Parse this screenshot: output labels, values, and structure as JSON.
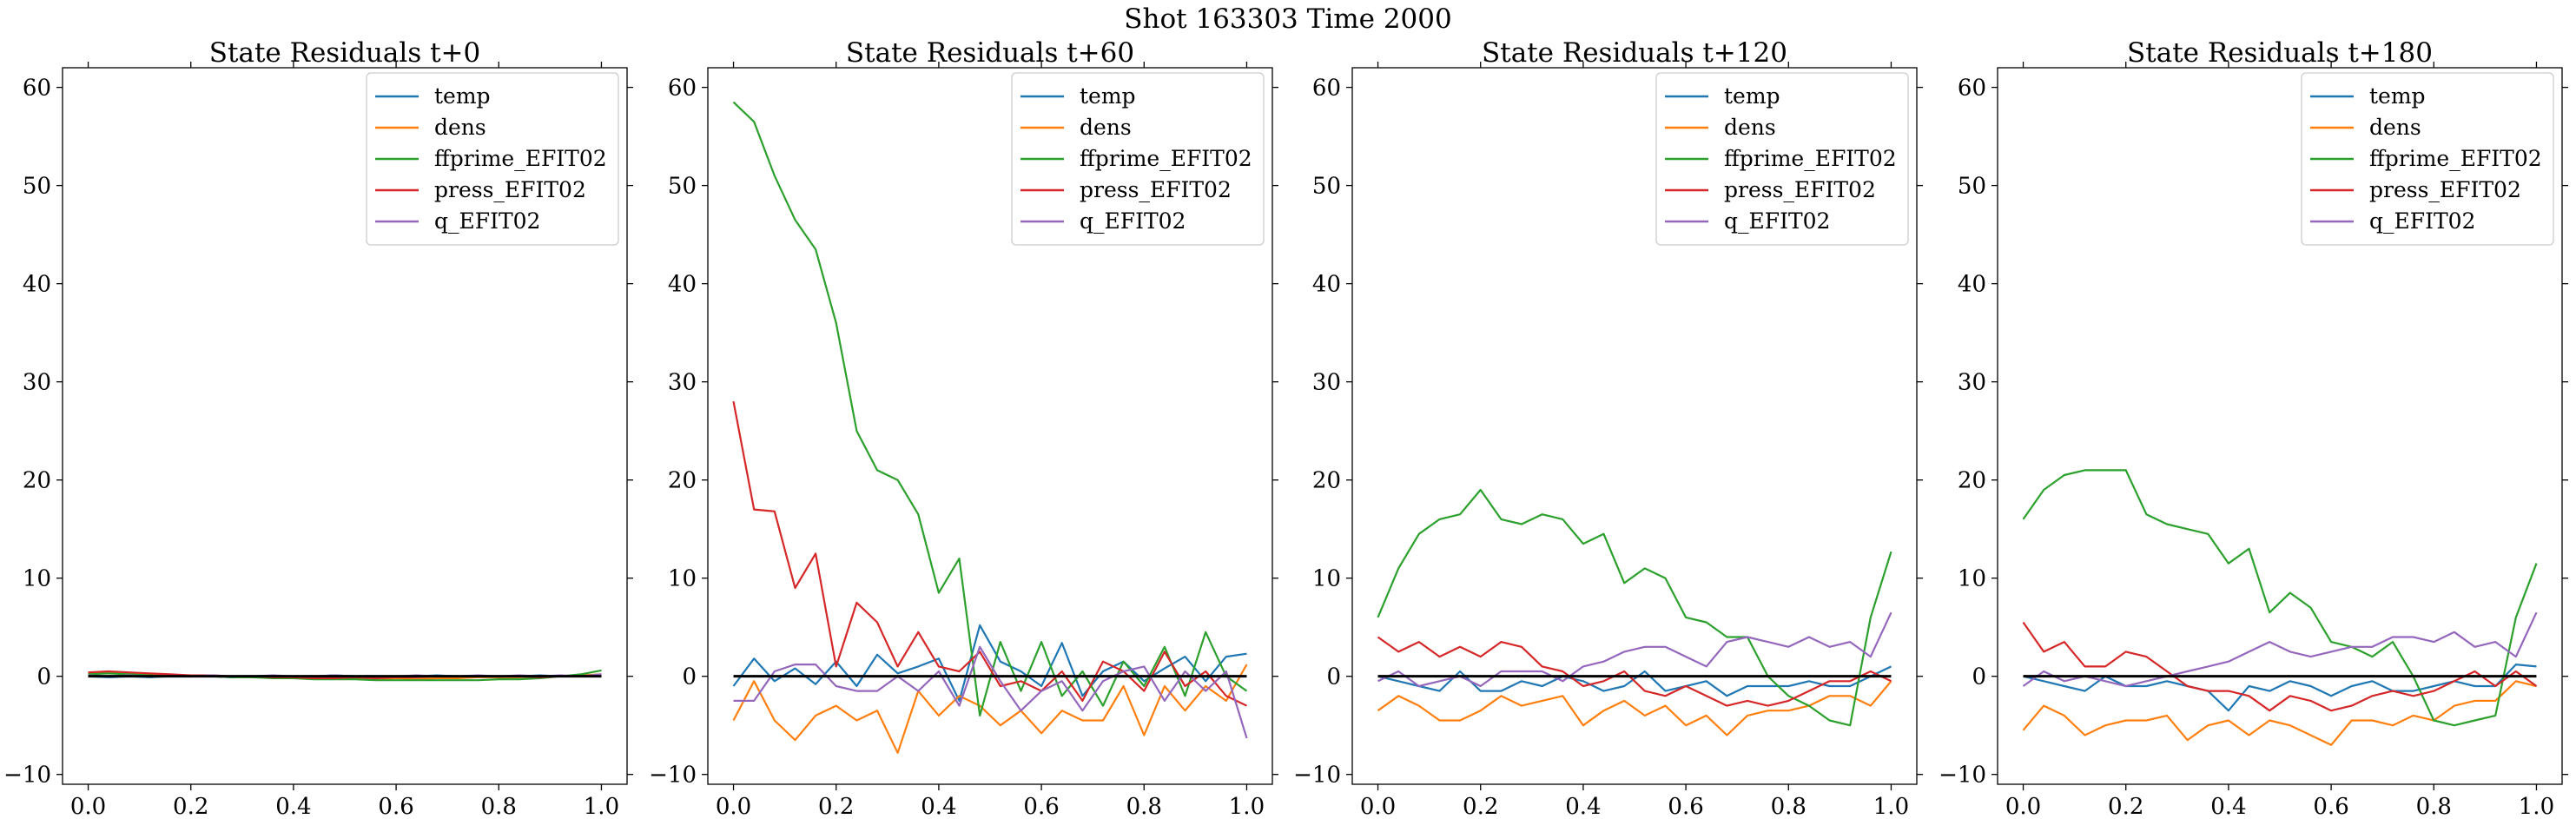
{
  "figure": {
    "suptitle": "Shot 163303   Time 2000"
  },
  "colors": {
    "temp": "#1f77b4",
    "dens": "#ff7f0e",
    "ffprime_EFIT02": "#2ca02c",
    "press_EFIT02": "#d62728",
    "q_EFIT02": "#9467bd",
    "zero_line": "#000000"
  },
  "chart_data": [
    {
      "type": "line",
      "title": "State Residuals t+0",
      "xlabel": "",
      "ylabel": "",
      "xlim": [
        -0.05,
        1.05
      ],
      "ylim": [
        -11,
        62
      ],
      "xticks": [
        0.0,
        0.2,
        0.4,
        0.6,
        0.8,
        1.0
      ],
      "xtick_labels": [
        "0.0",
        "0.2",
        "0.4",
        "0.6",
        "0.8",
        "1.0"
      ],
      "yticks": [
        -10,
        0,
        10,
        20,
        30,
        40,
        50,
        60
      ],
      "ytick_labels": [
        "−10",
        "0",
        "10",
        "20",
        "30",
        "40",
        "50",
        "60"
      ],
      "legend": "upper right",
      "zero_line": true,
      "x": [
        0.0,
        0.04,
        0.08,
        0.12,
        0.16,
        0.2,
        0.24,
        0.28,
        0.32,
        0.36,
        0.4,
        0.44,
        0.48,
        0.52,
        0.56,
        0.6,
        0.64,
        0.68,
        0.72,
        0.76,
        0.8,
        0.84,
        0.88,
        0.92,
        0.96,
        1.0
      ],
      "series": [
        {
          "name": "temp",
          "color_key": "temp",
          "values": [
            0.0,
            -0.1,
            0.0,
            -0.1,
            0.0,
            0.1,
            0.0,
            -0.1,
            0.0,
            0.0,
            -0.1,
            0.0,
            0.1,
            0.0,
            -0.1,
            0.0,
            0.0,
            0.1,
            0.0,
            0.0,
            -0.1,
            0.0,
            0.1,
            0.0,
            0.0,
            0.1
          ]
        },
        {
          "name": "dens",
          "color_key": "dens",
          "values": [
            0.3,
            0.4,
            0.3,
            0.2,
            0.1,
            0.1,
            0.0,
            0.0,
            -0.1,
            -0.1,
            -0.1,
            -0.2,
            -0.2,
            -0.2,
            -0.3,
            -0.2,
            -0.3,
            -0.2,
            -0.2,
            -0.1,
            -0.1,
            -0.1,
            0.0,
            0.0,
            0.1,
            0.2
          ]
        },
        {
          "name": "ffprime_EFIT02",
          "color_key": "ffprime_EFIT02",
          "values": [
            0.2,
            0.3,
            0.2,
            0.1,
            0.0,
            0.0,
            0.0,
            -0.1,
            -0.1,
            -0.2,
            -0.2,
            -0.3,
            -0.3,
            -0.3,
            -0.4,
            -0.4,
            -0.4,
            -0.4,
            -0.4,
            -0.4,
            -0.3,
            -0.3,
            -0.2,
            0.0,
            0.2,
            0.6
          ]
        },
        {
          "name": "press_EFIT02",
          "color_key": "press_EFIT02",
          "values": [
            0.4,
            0.5,
            0.4,
            0.3,
            0.2,
            0.1,
            0.1,
            0.0,
            0.0,
            -0.1,
            -0.1,
            -0.2,
            -0.2,
            -0.1,
            -0.2,
            -0.1,
            -0.1,
            0.0,
            0.0,
            0.0,
            0.0,
            0.0,
            -0.1,
            0.0,
            0.0,
            0.1
          ]
        },
        {
          "name": "q_EFIT02",
          "color_key": "q_EFIT02",
          "values": [
            0.1,
            0.0,
            0.1,
            0.0,
            0.0,
            0.0,
            0.1,
            0.0,
            0.0,
            0.1,
            0.0,
            0.0,
            0.1,
            0.0,
            0.0,
            0.0,
            0.1,
            0.0,
            0.0,
            0.1,
            0.0,
            0.1,
            0.0,
            0.1,
            0.0,
            0.2
          ]
        }
      ]
    },
    {
      "type": "line",
      "title": "State Residuals t+60",
      "xlabel": "",
      "ylabel": "",
      "xlim": [
        -0.05,
        1.05
      ],
      "ylim": [
        -11,
        62
      ],
      "xticks": [
        0.0,
        0.2,
        0.4,
        0.6,
        0.8,
        1.0
      ],
      "xtick_labels": [
        "0.0",
        "0.2",
        "0.4",
        "0.6",
        "0.8",
        "1.0"
      ],
      "yticks": [
        -10,
        0,
        10,
        20,
        30,
        40,
        50,
        60
      ],
      "ytick_labels": [
        "−10",
        "0",
        "10",
        "20",
        "30",
        "40",
        "50",
        "60"
      ],
      "legend": "upper right",
      "zero_line": true,
      "x": [
        0.0,
        0.04,
        0.08,
        0.12,
        0.16,
        0.2,
        0.24,
        0.28,
        0.32,
        0.36,
        0.4,
        0.44,
        0.48,
        0.52,
        0.56,
        0.6,
        0.64,
        0.68,
        0.72,
        0.76,
        0.8,
        0.84,
        0.88,
        0.92,
        0.96,
        1.0
      ],
      "series": [
        {
          "name": "temp",
          "color_key": "temp",
          "values": [
            -1.0,
            1.8,
            -0.5,
            0.8,
            -0.8,
            1.5,
            -1.0,
            2.2,
            0.3,
            1.0,
            1.8,
            -2.5,
            5.2,
            1.5,
            0.5,
            -1.0,
            3.4,
            -2.0,
            0.5,
            1.5,
            -0.5,
            0.8,
            2.0,
            -0.5,
            2.0,
            2.3
          ]
        },
        {
          "name": "dens",
          "color_key": "dens",
          "values": [
            -4.5,
            -0.5,
            -4.5,
            -6.5,
            -4.0,
            -3.0,
            -4.5,
            -3.5,
            -7.8,
            -1.5,
            -4.0,
            -2.0,
            -3.0,
            -5.0,
            -3.5,
            -5.8,
            -3.5,
            -4.5,
            -4.5,
            -1.0,
            -6.0,
            -1.0,
            -3.5,
            -1.0,
            -2.5,
            1.2
          ]
        },
        {
          "name": "ffprime_EFIT02",
          "color_key": "ffprime_EFIT02",
          "values": [
            58.5,
            56.5,
            51.0,
            46.5,
            43.5,
            36.0,
            25.0,
            21.0,
            20.0,
            16.5,
            8.5,
            12.0,
            -4.0,
            3.5,
            -1.5,
            3.5,
            -2.0,
            0.5,
            -3.0,
            1.5,
            -1.0,
            3.0,
            -2.0,
            4.5,
            0.0,
            -1.5
          ]
        },
        {
          "name": "press_EFIT02",
          "color_key": "press_EFIT02",
          "values": [
            28.0,
            17.0,
            16.8,
            9.0,
            12.5,
            1.0,
            7.5,
            5.5,
            1.0,
            4.5,
            1.0,
            0.5,
            2.5,
            -1.0,
            -0.5,
            -1.5,
            0.5,
            -2.5,
            1.5,
            0.5,
            -1.5,
            2.5,
            -1.0,
            0.5,
            -2.0,
            -3.0
          ]
        },
        {
          "name": "q_EFIT02",
          "color_key": "q_EFIT02",
          "values": [
            -2.5,
            -2.5,
            0.5,
            1.2,
            1.2,
            -1.0,
            -1.5,
            -1.5,
            0.0,
            -1.5,
            0.5,
            -3.0,
            3.0,
            -0.5,
            -3.5,
            -1.5,
            -0.5,
            -3.5,
            -0.5,
            0.5,
            1.0,
            -2.5,
            0.5,
            -1.5,
            0.5,
            -6.3
          ]
        }
      ]
    },
    {
      "type": "line",
      "title": "State Residuals t+120",
      "xlabel": "",
      "ylabel": "",
      "xlim": [
        -0.05,
        1.05
      ],
      "ylim": [
        -11,
        62
      ],
      "xticks": [
        0.0,
        0.2,
        0.4,
        0.6,
        0.8,
        1.0
      ],
      "xtick_labels": [
        "0.0",
        "0.2",
        "0.4",
        "0.6",
        "0.8",
        "1.0"
      ],
      "yticks": [
        -10,
        0,
        10,
        20,
        30,
        40,
        50,
        60
      ],
      "ytick_labels": [
        "−10",
        "0",
        "10",
        "20",
        "30",
        "40",
        "50",
        "60"
      ],
      "legend": "upper right",
      "zero_line": true,
      "x": [
        0.0,
        0.04,
        0.08,
        0.12,
        0.16,
        0.2,
        0.24,
        0.28,
        0.32,
        0.36,
        0.4,
        0.44,
        0.48,
        0.52,
        0.56,
        0.6,
        0.64,
        0.68,
        0.72,
        0.76,
        0.8,
        0.84,
        0.88,
        0.92,
        0.96,
        1.0
      ],
      "series": [
        {
          "name": "temp",
          "color_key": "temp",
          "values": [
            0.0,
            -0.5,
            -1.0,
            -1.5,
            0.5,
            -1.5,
            -1.5,
            -0.5,
            -1.0,
            0.0,
            -0.5,
            -1.5,
            -1.0,
            0.5,
            -1.5,
            -1.0,
            -0.5,
            -2.0,
            -1.0,
            -1.0,
            -1.0,
            -0.5,
            -1.0,
            -1.0,
            0.0,
            1.0
          ]
        },
        {
          "name": "dens",
          "color_key": "dens",
          "values": [
            -3.5,
            -2.0,
            -3.0,
            -4.5,
            -4.5,
            -3.5,
            -2.0,
            -3.0,
            -2.5,
            -2.0,
            -5.0,
            -3.5,
            -2.5,
            -4.0,
            -3.0,
            -5.0,
            -4.0,
            -6.0,
            -4.0,
            -3.5,
            -3.5,
            -3.0,
            -2.0,
            -2.0,
            -3.0,
            -0.5
          ]
        },
        {
          "name": "ffprime_EFIT02",
          "color_key": "ffprime_EFIT02",
          "values": [
            6.0,
            11.0,
            14.5,
            16.0,
            16.5,
            19.0,
            16.0,
            15.5,
            16.5,
            16.0,
            13.5,
            14.5,
            9.5,
            11.0,
            10.0,
            6.0,
            5.5,
            4.0,
            4.0,
            0.0,
            -2.0,
            -3.0,
            -4.5,
            -5.0,
            6.0,
            12.7
          ]
        },
        {
          "name": "press_EFIT02",
          "color_key": "press_EFIT02",
          "values": [
            4.0,
            2.5,
            3.5,
            2.0,
            3.0,
            2.0,
            3.5,
            3.0,
            1.0,
            0.5,
            -1.0,
            -0.5,
            0.5,
            -1.5,
            -2.0,
            -1.0,
            -2.0,
            -3.0,
            -2.5,
            -3.0,
            -2.5,
            -1.5,
            -0.5,
            -0.5,
            0.5,
            -0.5
          ]
        },
        {
          "name": "q_EFIT02",
          "color_key": "q_EFIT02",
          "values": [
            -0.5,
            0.5,
            -1.0,
            -0.5,
            0.0,
            -1.0,
            0.5,
            0.5,
            0.5,
            -0.5,
            1.0,
            1.5,
            2.5,
            3.0,
            3.0,
            2.0,
            1.0,
            3.5,
            4.0,
            3.5,
            3.0,
            4.0,
            3.0,
            3.5,
            2.0,
            6.5
          ]
        }
      ]
    },
    {
      "type": "line",
      "title": "State Residuals t+180",
      "xlabel": "",
      "ylabel": "",
      "xlim": [
        -0.05,
        1.05
      ],
      "ylim": [
        -11,
        62
      ],
      "xticks": [
        0.0,
        0.2,
        0.4,
        0.6,
        0.8,
        1.0
      ],
      "xtick_labels": [
        "0.0",
        "0.2",
        "0.4",
        "0.6",
        "0.8",
        "1.0"
      ],
      "yticks": [
        -10,
        0,
        10,
        20,
        30,
        40,
        50,
        60
      ],
      "ytick_labels": [
        "−10",
        "0",
        "10",
        "20",
        "30",
        "40",
        "50",
        "60"
      ],
      "legend": "upper right",
      "zero_line": true,
      "x": [
        0.0,
        0.04,
        0.08,
        0.12,
        0.16,
        0.2,
        0.24,
        0.28,
        0.32,
        0.36,
        0.4,
        0.44,
        0.48,
        0.52,
        0.56,
        0.6,
        0.64,
        0.68,
        0.72,
        0.76,
        0.8,
        0.84,
        0.88,
        0.92,
        0.96,
        1.0
      ],
      "series": [
        {
          "name": "temp",
          "color_key": "temp",
          "values": [
            0.0,
            -0.5,
            -1.0,
            -1.5,
            0.0,
            -1.0,
            -1.0,
            -0.5,
            -1.0,
            -1.5,
            -3.5,
            -1.0,
            -1.5,
            -0.5,
            -1.0,
            -2.0,
            -1.0,
            -0.5,
            -1.5,
            -1.5,
            -1.0,
            -0.5,
            -1.0,
            -1.0,
            1.2,
            1.0
          ]
        },
        {
          "name": "dens",
          "color_key": "dens",
          "values": [
            -5.5,
            -3.0,
            -4.0,
            -6.0,
            -5.0,
            -4.5,
            -4.5,
            -4.0,
            -6.5,
            -5.0,
            -4.5,
            -6.0,
            -4.5,
            -5.0,
            -6.0,
            -7.0,
            -4.5,
            -4.5,
            -5.0,
            -4.0,
            -4.5,
            -3.0,
            -2.5,
            -2.5,
            -0.5,
            -1.0
          ]
        },
        {
          "name": "ffprime_EFIT02",
          "color_key": "ffprime_EFIT02",
          "values": [
            16.0,
            19.0,
            20.5,
            21.0,
            21.0,
            21.0,
            16.5,
            15.5,
            15.0,
            14.5,
            11.5,
            13.0,
            6.5,
            8.5,
            7.0,
            3.5,
            3.0,
            2.0,
            3.5,
            0.0,
            -4.5,
            -5.0,
            -4.5,
            -4.0,
            6.0,
            11.5
          ]
        },
        {
          "name": "press_EFIT02",
          "color_key": "press_EFIT02",
          "values": [
            5.5,
            2.5,
            3.5,
            1.0,
            1.0,
            2.5,
            2.0,
            0.5,
            -1.0,
            -1.5,
            -1.5,
            -2.0,
            -3.5,
            -2.0,
            -2.5,
            -3.5,
            -3.0,
            -2.0,
            -1.5,
            -2.0,
            -1.5,
            -0.5,
            0.5,
            -1.0,
            0.5,
            -1.0
          ]
        },
        {
          "name": "q_EFIT02",
          "color_key": "q_EFIT02",
          "values": [
            -1.0,
            0.5,
            -0.5,
            0.0,
            -0.5,
            -1.0,
            -0.5,
            0.0,
            0.5,
            1.0,
            1.5,
            2.5,
            3.5,
            2.5,
            2.0,
            2.5,
            3.0,
            3.0,
            4.0,
            4.0,
            3.5,
            4.5,
            3.0,
            3.5,
            2.0,
            6.5
          ]
        }
      ]
    }
  ]
}
